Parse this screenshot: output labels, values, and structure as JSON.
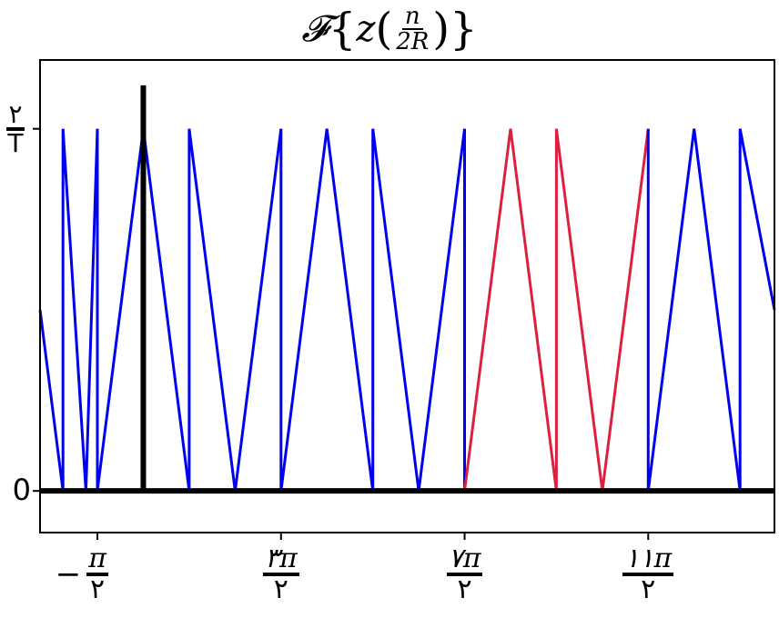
{
  "chart_data": {
    "type": "line",
    "title": {
      "func": "𝓕",
      "left_brace": "{",
      "right_brace": "}",
      "var": "z",
      "num": "n",
      "den": "2R"
    },
    "x_unit": "pi",
    "xlim": [
      -1.125,
      6.875
    ],
    "ylim": [
      -0.115,
      1.19
    ],
    "y_ticks": [
      {
        "value": 0,
        "label": "0"
      },
      {
        "value": 1,
        "num": "۲",
        "den": "T"
      }
    ],
    "x_ticks": [
      {
        "value": -0.5,
        "sign": "−",
        "num": "π",
        "den": "۲"
      },
      {
        "value": 1.5,
        "sign": "",
        "num": "۳π",
        "den": "۲"
      },
      {
        "value": 3.5,
        "sign": "",
        "num": "۷π",
        "den": "۲"
      },
      {
        "value": 5.5,
        "sign": "",
        "num": "۱۱π",
        "den": "۲"
      }
    ],
    "series": [
      {
        "color": "#0000ee",
        "x": [
          -1.125,
          -0.875,
          -0.875,
          -0.625,
          -0.625,
          -0.5,
          -0.5,
          0.0,
          0.5,
          0.5,
          1.0,
          1.5,
          1.5,
          2.0,
          2.5,
          2.5,
          3.0,
          3.5,
          3.5
        ],
        "y": [
          0.5,
          0.0,
          1.0,
          0.0,
          0.0,
          1.0,
          0.0,
          1.0,
          0.0,
          1.0,
          0.0,
          1.0,
          0.0,
          1.0,
          0.0,
          1.0,
          0.0,
          1.0,
          0.0
        ]
      },
      {
        "color": "#dc2040",
        "x": [
          3.5,
          4.0,
          4.5,
          4.5,
          5.0,
          5.5
        ],
        "y": [
          0.0,
          1.0,
          0.0,
          1.0,
          0.0,
          1.0
        ]
      },
      {
        "color": "#0000ee",
        "x": [
          5.5,
          5.5,
          6.0,
          6.5,
          6.5,
          6.875
        ],
        "y": [
          1.0,
          0.0,
          1.0,
          0.0,
          1.0,
          0.5
        ]
      }
    ],
    "impulse": {
      "x": 0.0,
      "y": 1.12,
      "color": "#000000"
    },
    "baseline": {
      "y": 0,
      "color": "#000000"
    },
    "grid": false,
    "legend": "none"
  }
}
